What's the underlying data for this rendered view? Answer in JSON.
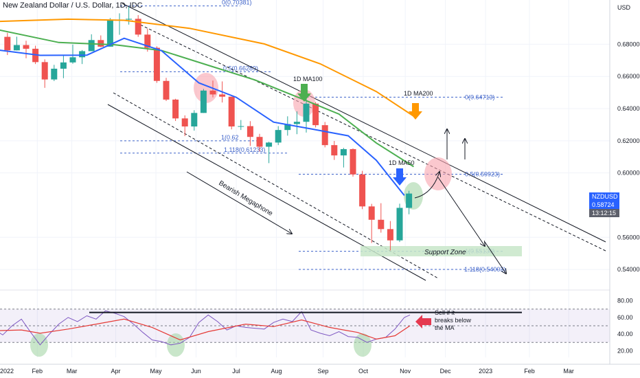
{
  "header": {
    "title": "New Zealand Dollar / U.S. Dollar, 1D, IDC"
  },
  "price_axis": {
    "currency": "USD",
    "ticks": [
      "0.68000",
      "0.66000",
      "0.64000",
      "0.62000",
      "0.60000",
      "0.56000",
      "0.54000"
    ],
    "symbol_badge": "NZDUSD",
    "price_badge": "0.58724",
    "timer_badge": "13:12:15"
  },
  "time_axis": {
    "ticks": [
      "2022",
      "Feb",
      "Mar",
      "Apr",
      "May",
      "Jun",
      "Jul",
      "Aug",
      "Sep",
      "Oct",
      "Nov",
      "Dec",
      "2023",
      "Feb",
      "Mar"
    ]
  },
  "rsi_axis": {
    "ticks": [
      "80.00",
      "60.00",
      "40.00",
      "20.00"
    ]
  },
  "annotations": {
    "fib_top": "0(0.70381)",
    "fib_05_left": "0.5(0.66289)",
    "fib_1_left": "1(0.62",
    "fib_1118_left": "1.118(0.61233)",
    "fib_0_right": "0(0.64713)",
    "fib_05_right": "0.5(0.59923)",
    "fib_1_right": "1(0.55133)",
    "fib_1118_right": "1.118(0.54003)",
    "ma100": "1D MA100",
    "ma200": "1D MA200",
    "ma50": "1D MA50",
    "megaphone": "Bearish Megaphone",
    "support": "Support Zone",
    "sell_note": [
      "Sell if it",
      "breaks below",
      "the MA"
    ]
  },
  "colors": {
    "up": "#26a69a",
    "down": "#ef5350",
    "ma50": "#2962ff",
    "ma100": "#4caf50",
    "ma200": "#ff9800",
    "rsi": "#7e57c2",
    "rsi_ma": "#e53935",
    "fib": "#3d62c9",
    "badge_blue": "#2962ff",
    "badge_gray": "#5d606b"
  },
  "chart_data": {
    "type": "candlestick",
    "symbol": "NZDUSD",
    "timeframe": "1D",
    "source": "IDC",
    "ylim": [
      0.5315,
      0.7075
    ],
    "last_price": 0.58724,
    "weekly_ohlc_weeks_from_jan_2022": [
      {
        "w": 0,
        "o": 0.6846,
        "h": 0.6871,
        "l": 0.6733,
        "c": 0.6762
      },
      {
        "w": 1,
        "o": 0.6762,
        "h": 0.6847,
        "l": 0.6761,
        "c": 0.6795
      },
      {
        "w": 2,
        "o": 0.6795,
        "h": 0.6822,
        "l": 0.6713,
        "c": 0.6772
      },
      {
        "w": 3,
        "o": 0.6772,
        "h": 0.6791,
        "l": 0.6677,
        "c": 0.6689
      },
      {
        "w": 4,
        "o": 0.6689,
        "h": 0.6706,
        "l": 0.6529,
        "c": 0.6581
      },
      {
        "w": 5,
        "o": 0.6581,
        "h": 0.6672,
        "l": 0.6571,
        "c": 0.6648
      },
      {
        "w": 6,
        "o": 0.6648,
        "h": 0.6732,
        "l": 0.6589,
        "c": 0.6687
      },
      {
        "w": 7,
        "o": 0.6687,
        "h": 0.6798,
        "l": 0.6679,
        "c": 0.6719
      },
      {
        "w": 8,
        "o": 0.6719,
        "h": 0.6764,
        "l": 0.6677,
        "c": 0.6757
      },
      {
        "w": 9,
        "o": 0.6757,
        "h": 0.6862,
        "l": 0.6757,
        "c": 0.6826
      },
      {
        "w": 10,
        "o": 0.6826,
        "h": 0.6855,
        "l": 0.6781,
        "c": 0.6785
      },
      {
        "w": 11,
        "o": 0.6785,
        "h": 0.6963,
        "l": 0.6785,
        "c": 0.6949
      },
      {
        "w": 12,
        "o": 0.6949,
        "h": 0.6992,
        "l": 0.6859,
        "c": 0.6953
      },
      {
        "w": 13,
        "o": 0.6953,
        "h": 0.7033,
        "l": 0.6922,
        "c": 0.6958
      },
      {
        "w": 14,
        "o": 0.6958,
        "h": 0.6981,
        "l": 0.6846,
        "c": 0.686
      },
      {
        "w": 15,
        "o": 0.686,
        "h": 0.6896,
        "l": 0.6754,
        "c": 0.6778
      },
      {
        "w": 16,
        "o": 0.6778,
        "h": 0.6787,
        "l": 0.656,
        "c": 0.6572
      },
      {
        "w": 17,
        "o": 0.6572,
        "h": 0.6591,
        "l": 0.6447,
        "c": 0.6456
      },
      {
        "w": 18,
        "o": 0.6456,
        "h": 0.6461,
        "l": 0.6323,
        "c": 0.6339
      },
      {
        "w": 19,
        "o": 0.6339,
        "h": 0.6358,
        "l": 0.6229,
        "c": 0.6289
      },
      {
        "w": 20,
        "o": 0.6289,
        "h": 0.639,
        "l": 0.6263,
        "c": 0.6373
      },
      {
        "w": 21,
        "o": 0.6373,
        "h": 0.6522,
        "l": 0.6373,
        "c": 0.6512
      },
      {
        "w": 22,
        "o": 0.6512,
        "h": 0.6574,
        "l": 0.647,
        "c": 0.6488
      },
      {
        "w": 23,
        "o": 0.6488,
        "h": 0.6569,
        "l": 0.6438,
        "c": 0.6474
      },
      {
        "w": 24,
        "o": 0.6474,
        "h": 0.6474,
        "l": 0.6271,
        "c": 0.6289
      },
      {
        "w": 25,
        "o": 0.6289,
        "h": 0.6329,
        "l": 0.6267,
        "c": 0.6291
      },
      {
        "w": 26,
        "o": 0.6291,
        "h": 0.6322,
        "l": 0.6168,
        "c": 0.6224
      },
      {
        "w": 27,
        "o": 0.6224,
        "h": 0.6243,
        "l": 0.6133,
        "c": 0.6163
      },
      {
        "w": 28,
        "o": 0.6163,
        "h": 0.6194,
        "l": 0.6061,
        "c": 0.6189
      },
      {
        "w": 29,
        "o": 0.6189,
        "h": 0.6291,
        "l": 0.6173,
        "c": 0.6267
      },
      {
        "w": 30,
        "o": 0.6267,
        "h": 0.6352,
        "l": 0.6232,
        "c": 0.6304
      },
      {
        "w": 31,
        "o": 0.6304,
        "h": 0.6383,
        "l": 0.6241,
        "c": 0.6318
      },
      {
        "w": 32,
        "o": 0.6318,
        "h": 0.6471,
        "l": 0.6251,
        "c": 0.6431
      },
      {
        "w": 33,
        "o": 0.6431,
        "h": 0.6441,
        "l": 0.6283,
        "c": 0.6297
      },
      {
        "w": 34,
        "o": 0.6297,
        "h": 0.6317,
        "l": 0.6159,
        "c": 0.6173
      },
      {
        "w": 35,
        "o": 0.6173,
        "h": 0.6199,
        "l": 0.6081,
        "c": 0.6109
      },
      {
        "w": 36,
        "o": 0.6109,
        "h": 0.6156,
        "l": 0.6034,
        "c": 0.6148
      },
      {
        "w": 37,
        "o": 0.6148,
        "h": 0.6153,
        "l": 0.5977,
        "c": 0.5991
      },
      {
        "w": 38,
        "o": 0.5991,
        "h": 0.6013,
        "l": 0.5775,
        "c": 0.5792
      },
      {
        "w": 39,
        "o": 0.5792,
        "h": 0.5808,
        "l": 0.5565,
        "c": 0.5709
      },
      {
        "w": 40,
        "o": 0.5709,
        "h": 0.5812,
        "l": 0.5629,
        "c": 0.5651
      },
      {
        "w": 41,
        "o": 0.5651,
        "h": 0.5701,
        "l": 0.5519,
        "c": 0.5581
      },
      {
        "w": 42,
        "o": 0.5581,
        "h": 0.5809,
        "l": 0.5571,
        "c": 0.5783
      },
      {
        "w": 43,
        "o": 0.5783,
        "h": 0.5889,
        "l": 0.5743,
        "c": 0.5872
      }
    ],
    "moving_averages": {
      "ma50": [
        [
          -1,
          0.6768
        ],
        [
          4,
          0.6731
        ],
        [
          9,
          0.6732
        ],
        [
          13,
          0.6837
        ],
        [
          17,
          0.676
        ],
        [
          21,
          0.656
        ],
        [
          25,
          0.647
        ],
        [
          29,
          0.6316
        ],
        [
          33,
          0.6274
        ],
        [
          37,
          0.6231
        ],
        [
          40,
          0.6079
        ],
        [
          43,
          0.586
        ]
      ],
      "ma100": [
        [
          -1,
          0.6896
        ],
        [
          6,
          0.6811
        ],
        [
          12,
          0.6797
        ],
        [
          17,
          0.6761
        ],
        [
          22,
          0.6669
        ],
        [
          27,
          0.6578
        ],
        [
          32,
          0.6461
        ],
        [
          36,
          0.6366
        ],
        [
          40,
          0.6186
        ],
        [
          44,
          0.6039
        ]
      ],
      "ma200": [
        [
          -1,
          0.6941
        ],
        [
          7,
          0.6956
        ],
        [
          13,
          0.6949
        ],
        [
          20,
          0.6899
        ],
        [
          28,
          0.6802
        ],
        [
          34,
          0.6678
        ],
        [
          40,
          0.6506
        ],
        [
          44,
          0.6353
        ]
      ]
    },
    "fibonacci_levels_left": [
      {
        "level": "0",
        "price": 0.70381
      },
      {
        "level": "0.5",
        "price": 0.66289
      },
      {
        "level": "1",
        "price": 0.62
      },
      {
        "level": "1.118",
        "price": 0.61233
      }
    ],
    "fibonacci_levels_right": [
      {
        "level": "0",
        "price": 0.64713
      },
      {
        "level": "0.5",
        "price": 0.59923
      },
      {
        "level": "1",
        "price": 0.55133
      },
      {
        "level": "1.118",
        "price": 0.54003
      }
    ],
    "rsi": {
      "ylim": [
        12,
        88
      ],
      "band": [
        30,
        70
      ],
      "resistance": 66,
      "values": [
        [
          -1,
          46
        ],
        [
          0,
          39
        ],
        [
          1,
          50
        ],
        [
          2,
          58
        ],
        [
          3,
          42
        ],
        [
          4,
          27
        ],
        [
          5,
          40
        ],
        [
          6,
          52
        ],
        [
          7,
          60
        ],
        [
          8,
          55
        ],
        [
          9,
          62
        ],
        [
          10,
          58
        ],
        [
          11,
          68
        ],
        [
          12,
          65
        ],
        [
          13,
          61
        ],
        [
          14,
          52
        ],
        [
          15,
          42
        ],
        [
          16,
          33
        ],
        [
          17,
          31
        ],
        [
          18,
          27
        ],
        [
          19,
          29
        ],
        [
          20,
          36
        ],
        [
          21,
          54
        ],
        [
          22,
          63
        ],
        [
          23,
          55
        ],
        [
          24,
          45
        ],
        [
          25,
          50
        ],
        [
          26,
          48
        ],
        [
          27,
          47
        ],
        [
          28,
          46
        ],
        [
          29,
          54
        ],
        [
          30,
          58
        ],
        [
          31,
          55
        ],
        [
          32,
          67
        ],
        [
          33,
          45
        ],
        [
          34,
          41
        ],
        [
          35,
          38
        ],
        [
          36,
          43
        ],
        [
          37,
          37
        ],
        [
          38,
          36
        ],
        [
          39,
          30
        ],
        [
          40,
          34
        ],
        [
          41,
          36
        ],
        [
          42,
          46
        ],
        [
          43,
          60
        ],
        [
          43.6,
          63
        ]
      ],
      "ma": [
        [
          -1,
          44
        ],
        [
          2,
          45
        ],
        [
          4,
          41
        ],
        [
          7,
          46
        ],
        [
          10,
          52
        ],
        [
          13,
          58
        ],
        [
          16,
          48
        ],
        [
          19,
          33
        ],
        [
          22,
          43
        ],
        [
          26,
          52
        ],
        [
          29,
          49
        ],
        [
          32,
          57
        ],
        [
          35,
          48
        ],
        [
          38,
          42
        ],
        [
          40,
          34
        ],
        [
          42,
          38
        ],
        [
          43.6,
          50
        ]
      ]
    }
  }
}
